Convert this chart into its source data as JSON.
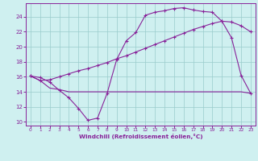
{
  "xlabel": "Windchill (Refroidissement éolien,°C)",
  "background_color": "#cff0f0",
  "grid_color": "#99cccc",
  "line_color": "#882299",
  "xlim": [
    -0.5,
    23.5
  ],
  "ylim": [
    9.5,
    25.8
  ],
  "xticks": [
    0,
    1,
    2,
    3,
    4,
    5,
    6,
    7,
    8,
    9,
    10,
    11,
    12,
    13,
    14,
    15,
    16,
    17,
    18,
    19,
    20,
    21,
    22,
    23
  ],
  "yticks": [
    10,
    12,
    14,
    16,
    18,
    20,
    22,
    24
  ],
  "line1_x": [
    0,
    1,
    2,
    3,
    4,
    5,
    6,
    7,
    8,
    9,
    10,
    11,
    12,
    13,
    14,
    15,
    16,
    17,
    18,
    19,
    20,
    21,
    22,
    23
  ],
  "line1_y": [
    16.1,
    15.9,
    15.3,
    14.2,
    13.2,
    11.8,
    10.2,
    10.5,
    13.8,
    18.3,
    20.8,
    21.9,
    24.2,
    24.6,
    24.8,
    25.1,
    25.2,
    24.9,
    24.7,
    24.6,
    23.4,
    21.2,
    16.2,
    13.8
  ],
  "line2_x": [
    0,
    1,
    2,
    3,
    4,
    5,
    6,
    7,
    8,
    9,
    10,
    11,
    12,
    13,
    14,
    15,
    16,
    17,
    18,
    19,
    20,
    21,
    22,
    23
  ],
  "line2_y": [
    16.1,
    15.5,
    15.6,
    16.0,
    16.4,
    16.8,
    17.1,
    17.5,
    17.9,
    18.4,
    18.8,
    19.3,
    19.8,
    20.3,
    20.8,
    21.3,
    21.8,
    22.3,
    22.7,
    23.1,
    23.4,
    23.3,
    22.8,
    22.0
  ],
  "line3_x": [
    0,
    1,
    2,
    3,
    4,
    5,
    6,
    7,
    8,
    9,
    10,
    11,
    12,
    13,
    14,
    15,
    16,
    17,
    18,
    19,
    20,
    21,
    22,
    23
  ],
  "line3_y": [
    16.1,
    15.5,
    14.5,
    14.3,
    14.0,
    14.0,
    14.0,
    14.0,
    14.0,
    14.0,
    14.0,
    14.0,
    14.0,
    14.0,
    14.0,
    14.0,
    14.0,
    14.0,
    14.0,
    14.0,
    14.0,
    14.0,
    14.0,
    13.8
  ]
}
